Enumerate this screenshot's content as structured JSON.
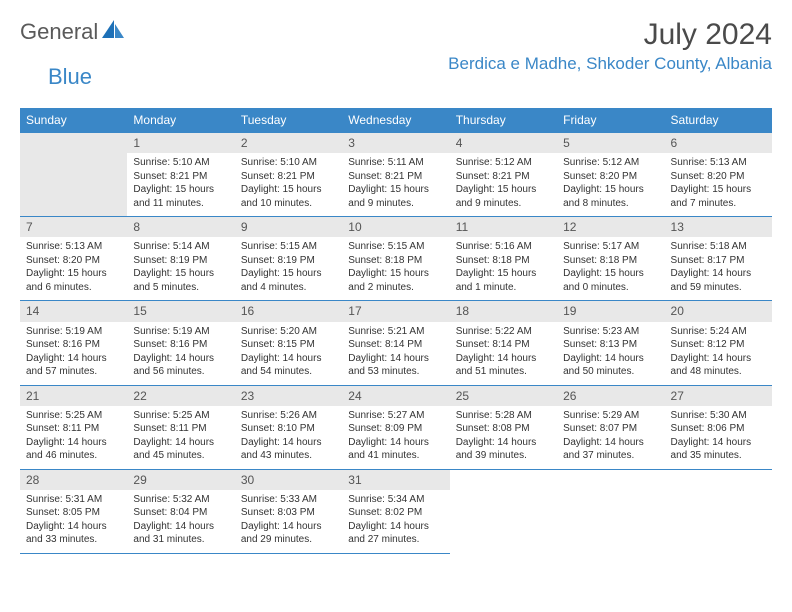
{
  "brand": {
    "name1": "General",
    "name2": "Blue"
  },
  "title": "July 2024",
  "location": "Berdica e Madhe, Shkoder County, Albania",
  "colors": {
    "header_bg": "#3a87c7",
    "header_text": "#ffffff",
    "daynum_bg": "#e8e8e8",
    "border": "#3a87c7",
    "text": "#333333",
    "location_color": "#3a87c7",
    "title_color": "#4a4a4a"
  },
  "typography": {
    "title_fontsize": 30,
    "location_fontsize": 17,
    "header_fontsize": 12,
    "cell_fontsize": 10
  },
  "days_of_week": [
    "Sunday",
    "Monday",
    "Tuesday",
    "Wednesday",
    "Thursday",
    "Friday",
    "Saturday"
  ],
  "weeks": [
    [
      null,
      {
        "n": "1",
        "sunrise": "5:10 AM",
        "sunset": "8:21 PM",
        "daylight": "15 hours and 11 minutes."
      },
      {
        "n": "2",
        "sunrise": "5:10 AM",
        "sunset": "8:21 PM",
        "daylight": "15 hours and 10 minutes."
      },
      {
        "n": "3",
        "sunrise": "5:11 AM",
        "sunset": "8:21 PM",
        "daylight": "15 hours and 9 minutes."
      },
      {
        "n": "4",
        "sunrise": "5:12 AM",
        "sunset": "8:21 PM",
        "daylight": "15 hours and 9 minutes."
      },
      {
        "n": "5",
        "sunrise": "5:12 AM",
        "sunset": "8:20 PM",
        "daylight": "15 hours and 8 minutes."
      },
      {
        "n": "6",
        "sunrise": "5:13 AM",
        "sunset": "8:20 PM",
        "daylight": "15 hours and 7 minutes."
      }
    ],
    [
      {
        "n": "7",
        "sunrise": "5:13 AM",
        "sunset": "8:20 PM",
        "daylight": "15 hours and 6 minutes."
      },
      {
        "n": "8",
        "sunrise": "5:14 AM",
        "sunset": "8:19 PM",
        "daylight": "15 hours and 5 minutes."
      },
      {
        "n": "9",
        "sunrise": "5:15 AM",
        "sunset": "8:19 PM",
        "daylight": "15 hours and 4 minutes."
      },
      {
        "n": "10",
        "sunrise": "5:15 AM",
        "sunset": "8:18 PM",
        "daylight": "15 hours and 2 minutes."
      },
      {
        "n": "11",
        "sunrise": "5:16 AM",
        "sunset": "8:18 PM",
        "daylight": "15 hours and 1 minute."
      },
      {
        "n": "12",
        "sunrise": "5:17 AM",
        "sunset": "8:18 PM",
        "daylight": "15 hours and 0 minutes."
      },
      {
        "n": "13",
        "sunrise": "5:18 AM",
        "sunset": "8:17 PM",
        "daylight": "14 hours and 59 minutes."
      }
    ],
    [
      {
        "n": "14",
        "sunrise": "5:19 AM",
        "sunset": "8:16 PM",
        "daylight": "14 hours and 57 minutes."
      },
      {
        "n": "15",
        "sunrise": "5:19 AM",
        "sunset": "8:16 PM",
        "daylight": "14 hours and 56 minutes."
      },
      {
        "n": "16",
        "sunrise": "5:20 AM",
        "sunset": "8:15 PM",
        "daylight": "14 hours and 54 minutes."
      },
      {
        "n": "17",
        "sunrise": "5:21 AM",
        "sunset": "8:14 PM",
        "daylight": "14 hours and 53 minutes."
      },
      {
        "n": "18",
        "sunrise": "5:22 AM",
        "sunset": "8:14 PM",
        "daylight": "14 hours and 51 minutes."
      },
      {
        "n": "19",
        "sunrise": "5:23 AM",
        "sunset": "8:13 PM",
        "daylight": "14 hours and 50 minutes."
      },
      {
        "n": "20",
        "sunrise": "5:24 AM",
        "sunset": "8:12 PM",
        "daylight": "14 hours and 48 minutes."
      }
    ],
    [
      {
        "n": "21",
        "sunrise": "5:25 AM",
        "sunset": "8:11 PM",
        "daylight": "14 hours and 46 minutes."
      },
      {
        "n": "22",
        "sunrise": "5:25 AM",
        "sunset": "8:11 PM",
        "daylight": "14 hours and 45 minutes."
      },
      {
        "n": "23",
        "sunrise": "5:26 AM",
        "sunset": "8:10 PM",
        "daylight": "14 hours and 43 minutes."
      },
      {
        "n": "24",
        "sunrise": "5:27 AM",
        "sunset": "8:09 PM",
        "daylight": "14 hours and 41 minutes."
      },
      {
        "n": "25",
        "sunrise": "5:28 AM",
        "sunset": "8:08 PM",
        "daylight": "14 hours and 39 minutes."
      },
      {
        "n": "26",
        "sunrise": "5:29 AM",
        "sunset": "8:07 PM",
        "daylight": "14 hours and 37 minutes."
      },
      {
        "n": "27",
        "sunrise": "5:30 AM",
        "sunset": "8:06 PM",
        "daylight": "14 hours and 35 minutes."
      }
    ],
    [
      {
        "n": "28",
        "sunrise": "5:31 AM",
        "sunset": "8:05 PM",
        "daylight": "14 hours and 33 minutes."
      },
      {
        "n": "29",
        "sunrise": "5:32 AM",
        "sunset": "8:04 PM",
        "daylight": "14 hours and 31 minutes."
      },
      {
        "n": "30",
        "sunrise": "5:33 AM",
        "sunset": "8:03 PM",
        "daylight": "14 hours and 29 minutes."
      },
      {
        "n": "31",
        "sunrise": "5:34 AM",
        "sunset": "8:02 PM",
        "daylight": "14 hours and 27 minutes."
      },
      null,
      null,
      null
    ]
  ],
  "labels": {
    "sunrise": "Sunrise:",
    "sunset": "Sunset:",
    "daylight": "Daylight:"
  }
}
